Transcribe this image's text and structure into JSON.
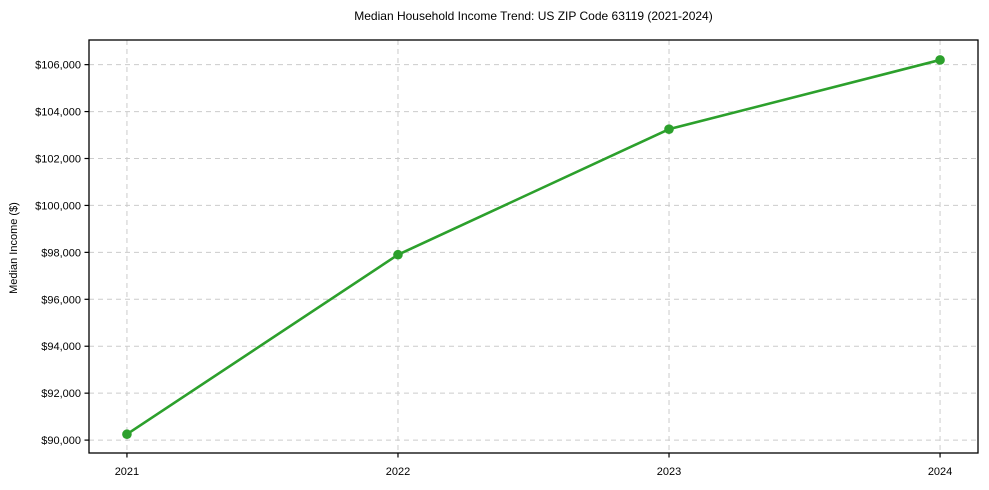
{
  "figure": {
    "background": "#ffffff",
    "plot_border_color": "#000000",
    "grid_color": "#cccccc",
    "tick_mark_color": "#000000",
    "text_color": "#000000"
  },
  "chart_data": {
    "type": "line",
    "title": "Median Household Income Trend: US ZIP Code 63119 (2021-2024)",
    "xlabel": "",
    "ylabel": "Median Income ($)",
    "categories": [
      "2021",
      "2022",
      "2023",
      "2024"
    ],
    "x": [
      2021,
      2022,
      2023,
      2024
    ],
    "values": [
      90250,
      97900,
      103250,
      106200
    ],
    "line_color": "#2ca02c",
    "marker": "circle",
    "marker_size": 9.6,
    "line_width": 2.6,
    "y_ticks": [
      {
        "value": 90000,
        "label": "$90,000"
      },
      {
        "value": 92000,
        "label": "$92,000"
      },
      {
        "value": 94000,
        "label": "$94,000"
      },
      {
        "value": 96000,
        "label": "$96,000"
      },
      {
        "value": 98000,
        "label": "$98,000"
      },
      {
        "value": 100000,
        "label": "$100,000"
      },
      {
        "value": 102000,
        "label": "$102,000"
      },
      {
        "value": 104000,
        "label": "$104,000"
      },
      {
        "value": 106000,
        "label": "$106,000"
      }
    ],
    "ylim": [
      89450,
      107050
    ],
    "xlim": [
      2020.86,
      2024.14
    ],
    "grid": {
      "visible": true,
      "style": "dashed",
      "axes": "both"
    },
    "legend": {
      "visible": false
    }
  }
}
